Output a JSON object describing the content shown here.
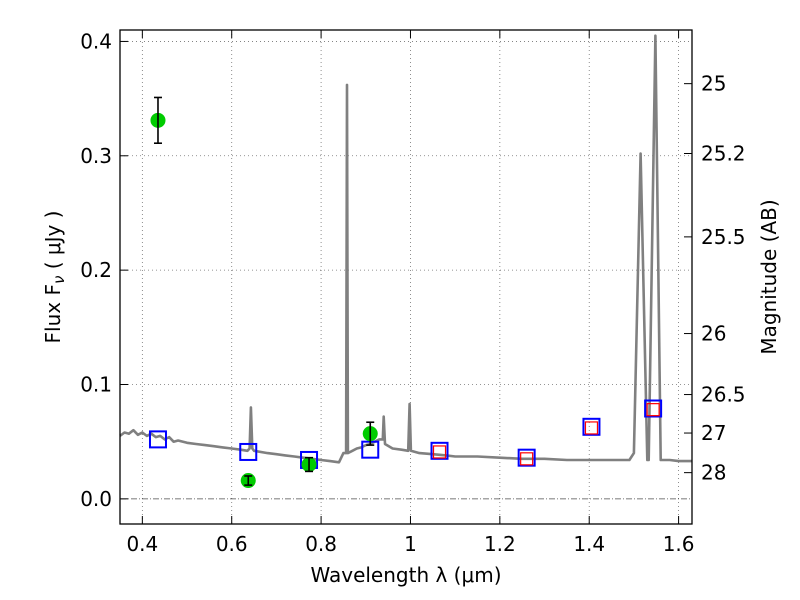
{
  "chart_data": {
    "type": "scatter",
    "xlabel": "Wavelength  λ (μm)",
    "ylabel": "Flux  F",
    "ylabel_sub": "ν",
    "ylabel_unit": " ( μJy )",
    "y2label": "Magnitude (AB)",
    "xlim": [
      0.35,
      1.63
    ],
    "ylim": [
      -0.022,
      0.41
    ],
    "grid": true,
    "x_ticks": [
      0.4,
      0.6,
      0.8,
      1.0,
      1.2,
      1.4,
      1.6
    ],
    "x_tick_labels": [
      "0.4",
      "0.6",
      "0.8",
      "1",
      "1.2",
      "1.4",
      "1.6"
    ],
    "y_ticks": [
      0.0,
      0.1,
      0.2,
      0.3,
      0.4
    ],
    "y_tick_labels": [
      "0.0",
      "0.1",
      "0.2",
      "0.3",
      "0.4"
    ],
    "y2_ticks": [
      {
        "label": "25",
        "value": 25.0
      },
      {
        "label": "25.2",
        "value": 25.2
      },
      {
        "label": "25.5",
        "value": 25.5
      },
      {
        "label": "26",
        "value": 26.0
      },
      {
        "label": "26.5",
        "value": 26.5
      },
      {
        "label": "27",
        "value": 27.0
      },
      {
        "label": "28",
        "value": 28.0
      }
    ],
    "series": [
      {
        "kind": "model_spectrum",
        "color": "#808080",
        "points": [
          [
            0.35,
            0.055
          ],
          [
            0.36,
            0.058
          ],
          [
            0.37,
            0.057
          ],
          [
            0.38,
            0.06
          ],
          [
            0.39,
            0.056
          ],
          [
            0.4,
            0.058
          ],
          [
            0.41,
            0.055
          ],
          [
            0.42,
            0.057
          ],
          [
            0.43,
            0.054
          ],
          [
            0.44,
            0.055
          ],
          [
            0.45,
            0.052
          ],
          [
            0.46,
            0.054
          ],
          [
            0.47,
            0.05
          ],
          [
            0.48,
            0.051
          ],
          [
            0.5,
            0.049
          ],
          [
            0.52,
            0.048
          ],
          [
            0.54,
            0.047
          ],
          [
            0.56,
            0.046
          ],
          [
            0.58,
            0.045
          ],
          [
            0.6,
            0.044
          ],
          [
            0.62,
            0.043
          ],
          [
            0.635,
            0.042
          ],
          [
            0.64,
            0.044
          ],
          [
            0.643,
            0.08
          ],
          [
            0.646,
            0.044
          ],
          [
            0.65,
            0.042
          ],
          [
            0.68,
            0.04
          ],
          [
            0.7,
            0.039
          ],
          [
            0.72,
            0.038
          ],
          [
            0.74,
            0.037
          ],
          [
            0.76,
            0.036
          ],
          [
            0.78,
            0.035
          ],
          [
            0.8,
            0.034
          ],
          [
            0.82,
            0.033
          ],
          [
            0.84,
            0.032
          ],
          [
            0.85,
            0.04
          ],
          [
            0.856,
            0.04
          ],
          [
            0.858,
            0.362
          ],
          [
            0.86,
            0.04
          ],
          [
            0.87,
            0.042
          ],
          [
            0.88,
            0.044
          ],
          [
            0.89,
            0.045
          ],
          [
            0.9,
            0.047
          ],
          [
            0.91,
            0.048
          ],
          [
            0.92,
            0.05
          ],
          [
            0.93,
            0.052
          ],
          [
            0.938,
            0.052
          ],
          [
            0.94,
            0.072
          ],
          [
            0.943,
            0.048
          ],
          [
            0.96,
            0.044
          ],
          [
            0.98,
            0.043
          ],
          [
            0.995,
            0.042
          ],
          [
            0.998,
            0.083
          ],
          [
            1.001,
            0.042
          ],
          [
            1.02,
            0.04
          ],
          [
            1.05,
            0.039
          ],
          [
            1.08,
            0.038
          ],
          [
            1.1,
            0.037
          ],
          [
            1.15,
            0.037
          ],
          [
            1.2,
            0.036
          ],
          [
            1.25,
            0.035
          ],
          [
            1.3,
            0.035
          ],
          [
            1.35,
            0.034
          ],
          [
            1.4,
            0.034
          ],
          [
            1.45,
            0.034
          ],
          [
            1.49,
            0.034
          ],
          [
            1.5,
            0.04
          ],
          [
            1.515,
            0.302
          ],
          [
            1.53,
            0.034
          ],
          [
            1.533,
            0.034
          ],
          [
            1.548,
            0.405
          ],
          [
            1.56,
            0.034
          ],
          [
            1.58,
            0.034
          ],
          [
            1.6,
            0.033
          ],
          [
            1.63,
            0.033
          ]
        ]
      }
    ],
    "observed_points": [
      {
        "x": 0.435,
        "y": 0.331,
        "err": 0.02
      },
      {
        "x": 0.637,
        "y": 0.016,
        "err": 0.004
      },
      {
        "x": 0.773,
        "y": 0.03,
        "err": 0.006
      },
      {
        "x": 0.91,
        "y": 0.057,
        "err": 0.01
      }
    ],
    "model_band_points": [
      {
        "x": 0.435,
        "y": 0.052
      },
      {
        "x": 0.637,
        "y": 0.041
      },
      {
        "x": 0.773,
        "y": 0.034
      },
      {
        "x": 0.91,
        "y": 0.043
      },
      {
        "x": 1.065,
        "y": 0.042
      },
      {
        "x": 1.26,
        "y": 0.036
      },
      {
        "x": 1.405,
        "y": 0.063
      },
      {
        "x": 1.543,
        "y": 0.079
      }
    ],
    "upper_limit_points": [
      {
        "x": 1.065,
        "y": 0.041
      },
      {
        "x": 1.26,
        "y": 0.035
      },
      {
        "x": 1.405,
        "y": 0.062
      },
      {
        "x": 1.543,
        "y": 0.078
      }
    ],
    "colors": {
      "observed": "#00cc00",
      "model_box": "#0000ff",
      "limit_box": "#ff0000",
      "spectrum": "#808080"
    }
  }
}
